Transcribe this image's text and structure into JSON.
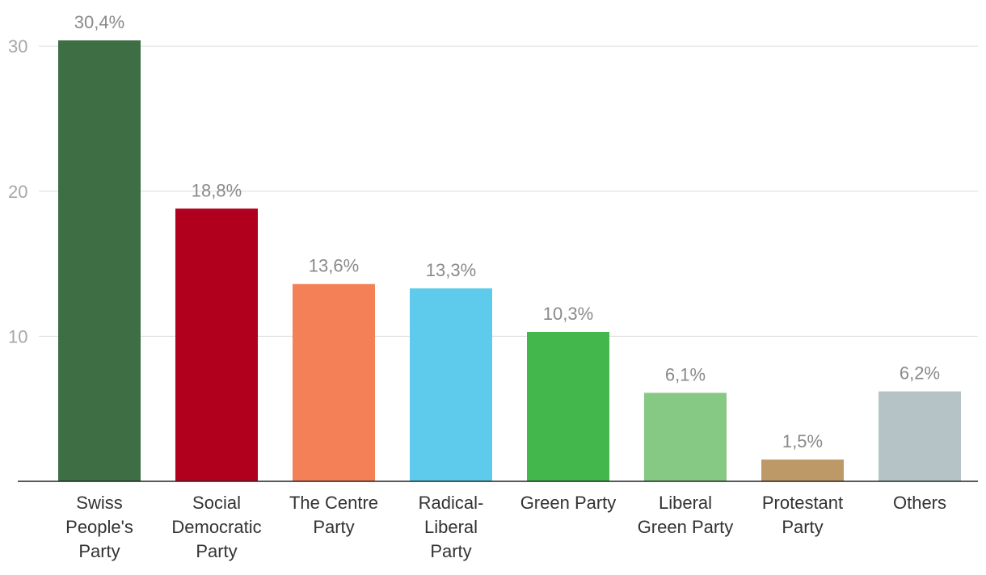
{
  "chart_data": {
    "type": "bar",
    "categories": [
      [
        "Swiss",
        "People's",
        "Party"
      ],
      [
        "Social",
        "Democratic",
        "Party"
      ],
      [
        "The Centre",
        "Party"
      ],
      [
        "Radical-",
        "Liberal",
        "Party"
      ],
      [
        "Green Party"
      ],
      [
        "Liberal",
        "Green Party"
      ],
      [
        "Protestant",
        "Party"
      ],
      [
        "Others"
      ]
    ],
    "values": [
      30.4,
      18.8,
      13.6,
      13.3,
      10.3,
      6.1,
      1.5,
      6.2
    ],
    "value_labels": [
      "30,4%",
      "18,8%",
      "13,6%",
      "13,3%",
      "10,3%",
      "6,1%",
      "1,5%",
      "6,2%"
    ],
    "colors": [
      "#3e6e44",
      "#b0001e",
      "#f48058",
      "#5fcbec",
      "#43b74b",
      "#86c984",
      "#bc9967",
      "#b5c3c7"
    ],
    "yticks": [
      10,
      20,
      30
    ],
    "ylim": [
      0,
      30.4
    ],
    "grid": true,
    "title": "",
    "xlabel": "",
    "ylabel": ""
  }
}
